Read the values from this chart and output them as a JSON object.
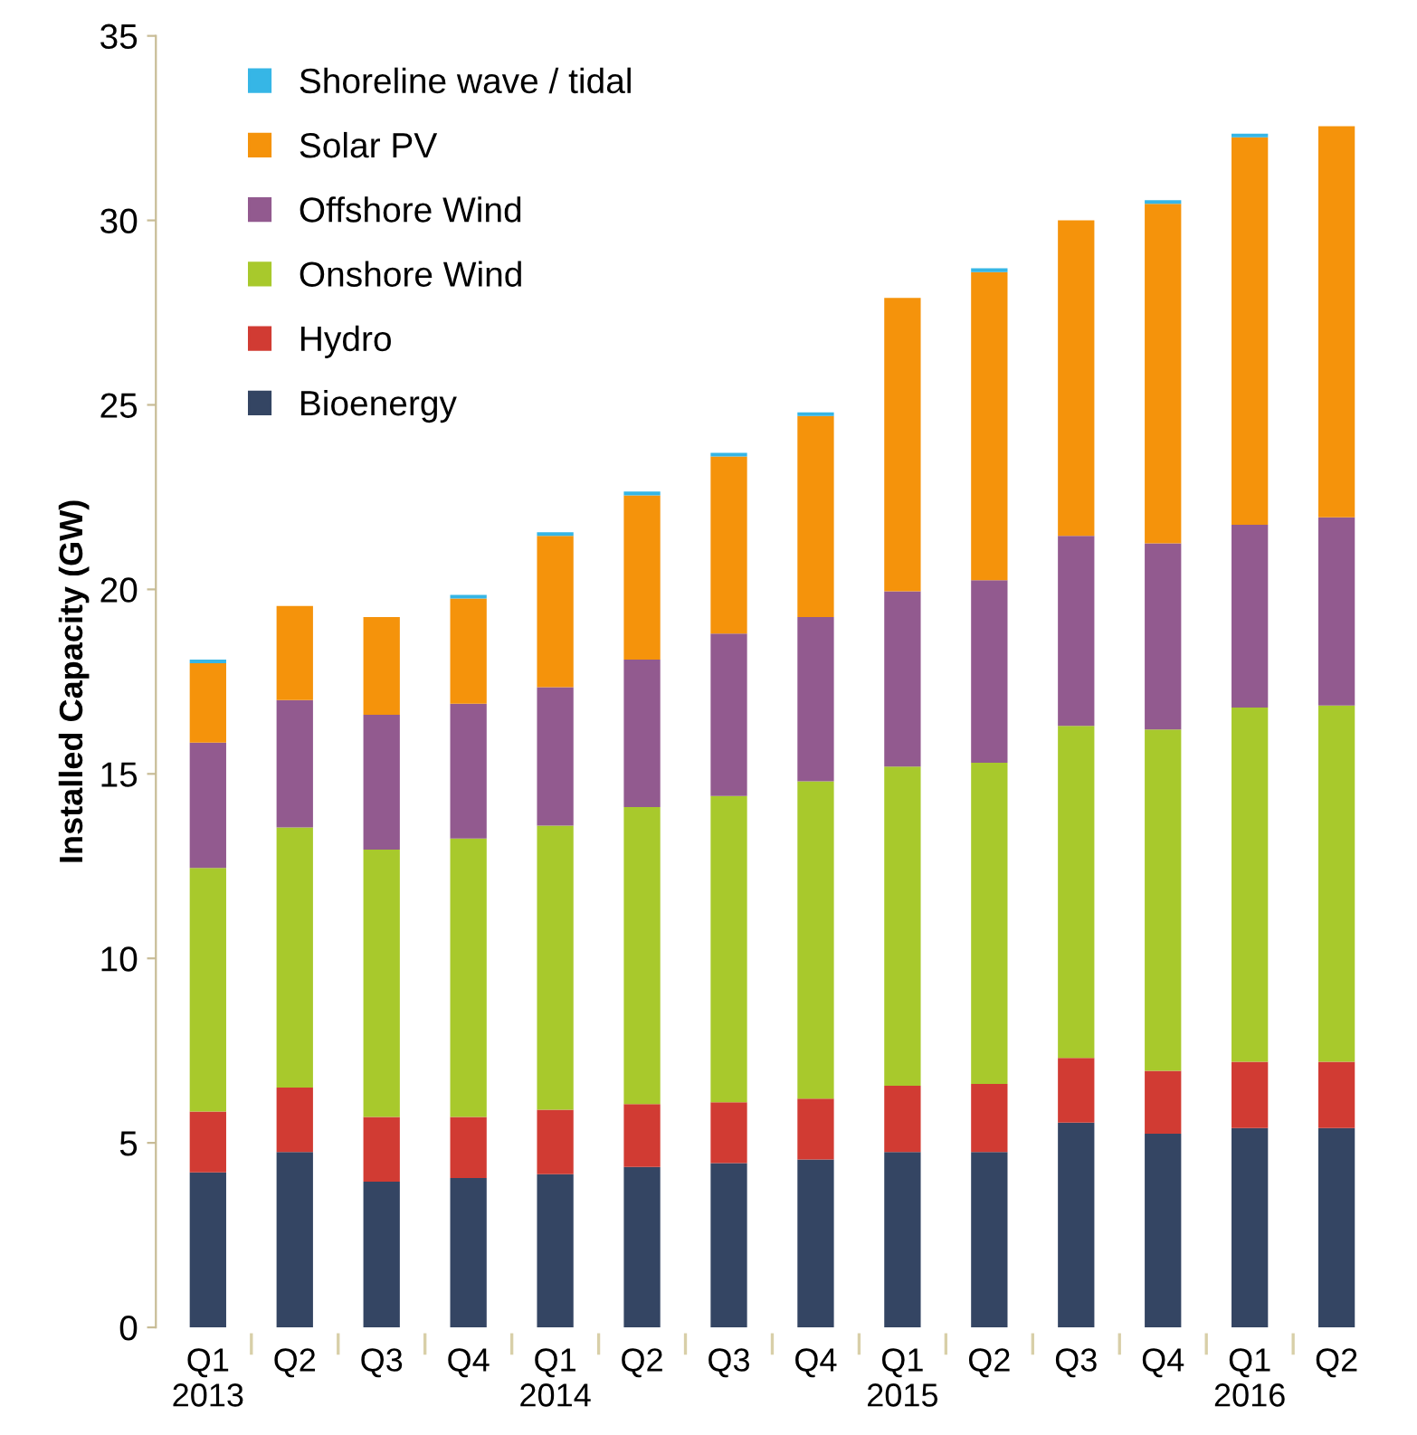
{
  "chart_data": {
    "type": "bar",
    "stacked": true,
    "ylabel": "Installed Capacity (GW)",
    "categories": [
      "Q1\n2013",
      "Q2",
      "Q3",
      "Q4",
      "Q1\n2014",
      "Q2",
      "Q3",
      "Q4",
      "Q1\n2015",
      "Q2",
      "Q3",
      "Q4",
      "Q1\n2016",
      "Q2"
    ],
    "series": [
      {
        "name": "Bioenergy",
        "color": "#344563",
        "values": [
          4.2,
          4.75,
          3.95,
          4.05,
          4.15,
          4.35,
          4.45,
          4.55,
          4.75,
          4.75,
          5.55,
          5.25,
          5.4,
          5.4
        ]
      },
      {
        "name": "Hydro",
        "color": "#d13b33",
        "values": [
          1.65,
          1.75,
          1.75,
          1.65,
          1.75,
          1.7,
          1.65,
          1.65,
          1.8,
          1.85,
          1.75,
          1.7,
          1.8,
          1.8
        ]
      },
      {
        "name": "Onshore Wind",
        "color": "#a8c92c",
        "values": [
          6.6,
          7.05,
          7.25,
          7.55,
          7.7,
          8.05,
          8.3,
          8.6,
          8.65,
          8.7,
          9.0,
          9.25,
          9.6,
          9.65
        ]
      },
      {
        "name": "Offshore Wind",
        "color": "#925a8f",
        "values": [
          3.4,
          3.45,
          3.65,
          3.65,
          3.75,
          4.0,
          4.4,
          4.45,
          4.75,
          4.95,
          5.15,
          5.05,
          4.95,
          5.1
        ]
      },
      {
        "name": "Solar PV",
        "color": "#f5930b",
        "values": [
          2.15,
          2.55,
          2.65,
          2.85,
          4.1,
          4.45,
          4.8,
          5.45,
          7.95,
          8.35,
          8.55,
          9.2,
          10.5,
          10.6
        ]
      },
      {
        "name": "Shoreline wave / tidal",
        "color": "#36b6e6",
        "values": [
          0.1,
          0,
          0,
          0.1,
          0.1,
          0.1,
          0.1,
          0.1,
          0,
          0.1,
          0,
          0.1,
          0.1,
          0
        ]
      }
    ],
    "ylim": [
      0,
      35
    ],
    "yticks": [
      0,
      5,
      10,
      15,
      20,
      25,
      30,
      35
    ],
    "grid": false,
    "legend": "top left"
  }
}
